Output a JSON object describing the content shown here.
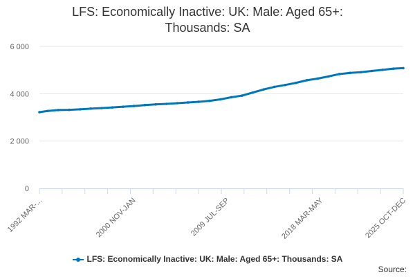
{
  "chart_data": {
    "type": "line",
    "title_lines": [
      "LFS: Economically Inactive: UK: Male: Aged 65+:",
      "Thousands: SA"
    ],
    "xlabel": "",
    "ylabel": "",
    "ylim": [
      0,
      6000
    ],
    "yticks": [
      {
        "value": 0,
        "label": "0"
      },
      {
        "value": 2000,
        "label": "2 000"
      },
      {
        "value": 4000,
        "label": "4 000"
      },
      {
        "value": 6000,
        "label": "6 000"
      }
    ],
    "x_start": 1992.25,
    "x_end": 2025.92,
    "xticks": [
      {
        "x": 1992.25,
        "label": "1992 MAR-..."
      },
      {
        "x": 2000.92,
        "label": "2000 NOV-JAN"
      },
      {
        "x": 2009.58,
        "label": "2009 JUL-SEP"
      },
      {
        "x": 2018.25,
        "label": "2018 MAR-MAY"
      },
      {
        "x": 2025.92,
        "label": "2025 OCT-DEC"
      }
    ],
    "grid": true,
    "legend_position": "bottom",
    "series": [
      {
        "name": "LFS: Economically Inactive: UK: Male: Aged 65+: Thousands: SA",
        "color": "#0077bb",
        "points": [
          [
            1992.25,
            3220
          ],
          [
            1993.0,
            3270
          ],
          [
            1994.0,
            3310
          ],
          [
            1995.0,
            3320
          ],
          [
            1996.0,
            3340
          ],
          [
            1997.0,
            3370
          ],
          [
            1998.0,
            3390
          ],
          [
            1999.0,
            3420
          ],
          [
            2000.0,
            3450
          ],
          [
            2001.0,
            3480
          ],
          [
            2002.0,
            3520
          ],
          [
            2003.0,
            3550
          ],
          [
            2004.0,
            3570
          ],
          [
            2005.0,
            3600
          ],
          [
            2006.0,
            3630
          ],
          [
            2007.0,
            3660
          ],
          [
            2008.0,
            3700
          ],
          [
            2009.0,
            3760
          ],
          [
            2010.0,
            3850
          ],
          [
            2011.0,
            3920
          ],
          [
            2012.0,
            4050
          ],
          [
            2013.0,
            4180
          ],
          [
            2014.0,
            4290
          ],
          [
            2015.0,
            4370
          ],
          [
            2016.0,
            4460
          ],
          [
            2017.0,
            4570
          ],
          [
            2018.0,
            4640
          ],
          [
            2019.0,
            4730
          ],
          [
            2020.0,
            4830
          ],
          [
            2021.0,
            4880
          ],
          [
            2022.0,
            4910
          ],
          [
            2023.0,
            4960
          ],
          [
            2024.0,
            5010
          ],
          [
            2025.0,
            5060
          ],
          [
            2025.92,
            5080
          ]
        ]
      }
    ]
  },
  "source_label": "Source:"
}
